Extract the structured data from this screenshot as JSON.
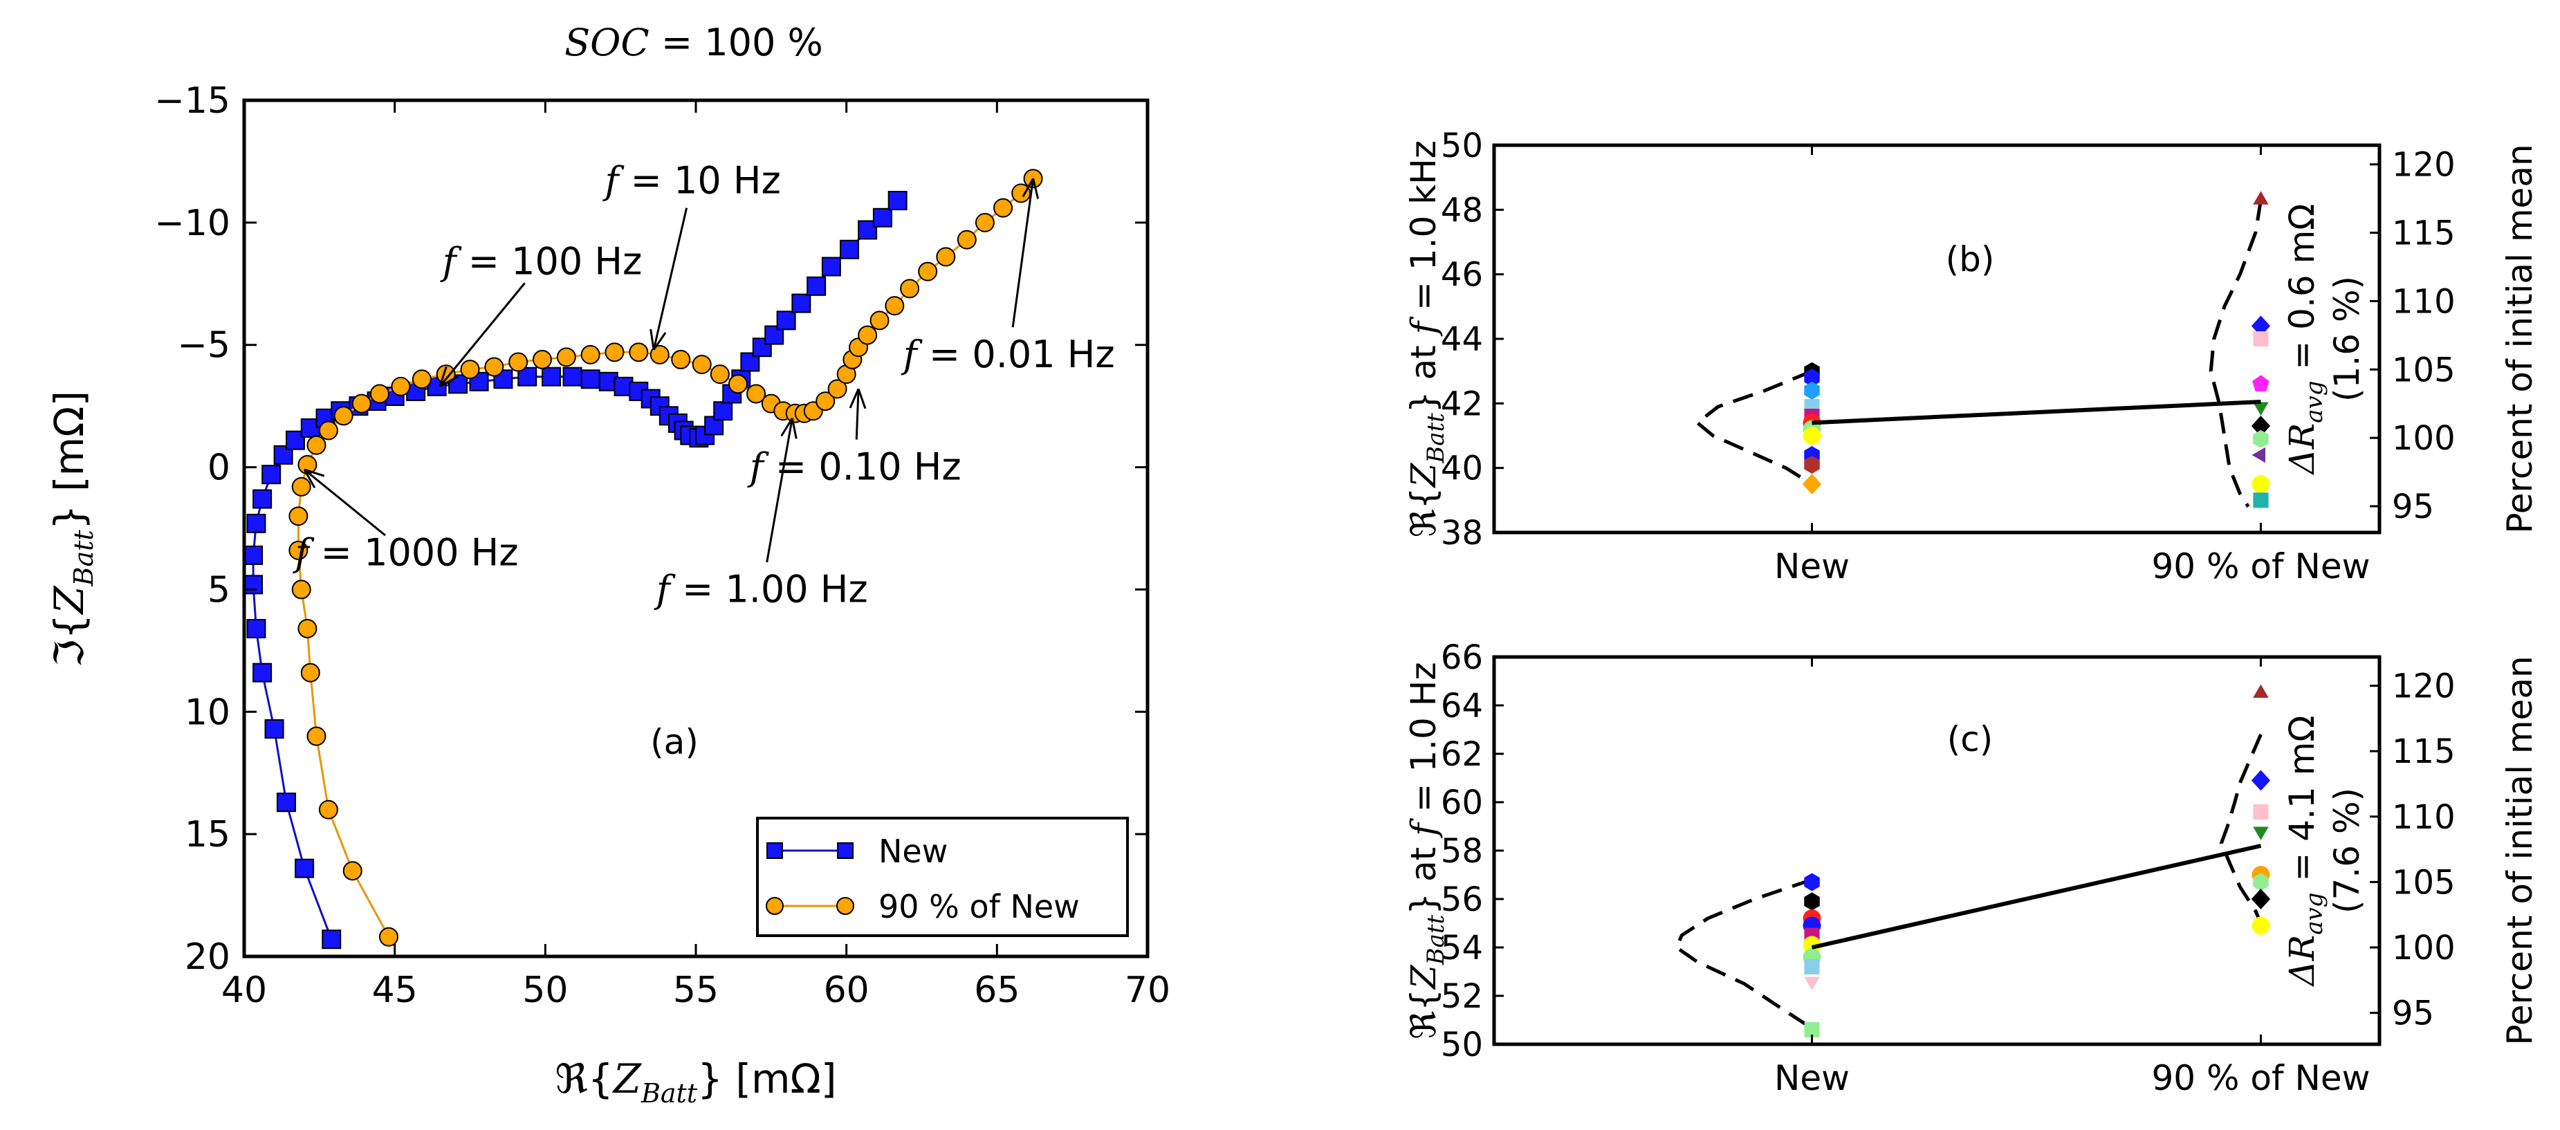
{
  "chart_data": [
    {
      "id": "a",
      "type": "scatter",
      "title": "SOC = 100 %",
      "title_parts": {
        "var": "SOC",
        "rest": " = 100 %"
      },
      "panel_label": "(a)",
      "xlabel": "ℜ{Z_Batt} [mΩ]",
      "xlabel_parts": {
        "op": "ℜ",
        "var": "Z",
        "sub": "Batt",
        "unit": " [mΩ]"
      },
      "ylabel": "ℑ{Z_Batt} [mΩ]",
      "ylabel_parts": {
        "op": "ℑ",
        "var": "Z",
        "sub": "Batt",
        "unit": " [mΩ]"
      },
      "xlim": [
        40,
        70
      ],
      "ylim": [
        20,
        -15
      ],
      "xticks": [
        40,
        45,
        50,
        55,
        60,
        65,
        70
      ],
      "xtick_labels": [
        "40",
        "45",
        "50",
        "55",
        "60",
        "65",
        "70"
      ],
      "yticks": [
        -15,
        -10,
        -5,
        0,
        5,
        10,
        15,
        20
      ],
      "ytick_labels": [
        "−15",
        "−10",
        "−5",
        "0",
        "5",
        "10",
        "15",
        "20"
      ],
      "grid": false,
      "legend_position": "bottom-right",
      "series": [
        {
          "name": "New",
          "color": "#1414ff",
          "line_color": "#1010c8",
          "marker": "square",
          "x": [
            42.9,
            42.0,
            41.4,
            41.0,
            40.6,
            40.4,
            40.3,
            40.3,
            40.4,
            40.6,
            40.9,
            41.3,
            41.7,
            42.2,
            42.7,
            43.2,
            43.8,
            44.4,
            45.0,
            45.7,
            46.4,
            47.1,
            47.8,
            48.6,
            49.4,
            50.2,
            50.9,
            51.5,
            52.1,
            52.6,
            53.1,
            53.5,
            53.8,
            54.1,
            54.4,
            54.6,
            54.8,
            55.1,
            55.3,
            55.6,
            55.9,
            56.2,
            56.5,
            56.8,
            57.2,
            57.6,
            58.0,
            58.5,
            59.0,
            59.5,
            60.1,
            60.7,
            61.2,
            61.7
          ],
          "y": [
            19.3,
            16.4,
            13.7,
            10.7,
            8.4,
            6.6,
            4.8,
            3.6,
            2.3,
            1.3,
            0.3,
            -0.5,
            -1.1,
            -1.6,
            -2.0,
            -2.3,
            -2.5,
            -2.7,
            -2.9,
            -3.1,
            -3.3,
            -3.4,
            -3.5,
            -3.6,
            -3.7,
            -3.7,
            -3.7,
            -3.6,
            -3.5,
            -3.3,
            -3.1,
            -2.8,
            -2.5,
            -2.1,
            -1.8,
            -1.5,
            -1.3,
            -1.2,
            -1.3,
            -1.7,
            -2.3,
            -3.0,
            -3.6,
            -4.3,
            -4.9,
            -5.4,
            -6.0,
            -6.7,
            -7.4,
            -8.2,
            -8.9,
            -9.7,
            -10.2,
            -10.9
          ]
        },
        {
          "name": "90 % of New",
          "color": "#ffa500",
          "line_color": "#e8960a",
          "marker": "circle",
          "x": [
            44.8,
            43.6,
            42.8,
            42.4,
            42.2,
            42.1,
            41.9,
            41.8,
            41.8,
            41.9,
            42.1,
            42.4,
            42.8,
            43.3,
            43.9,
            44.5,
            45.2,
            45.9,
            46.7,
            47.5,
            48.3,
            49.1,
            49.9,
            50.7,
            51.5,
            52.3,
            53.1,
            53.8,
            54.5,
            55.2,
            55.8,
            56.4,
            57.0,
            57.5,
            57.9,
            58.3,
            58.6,
            58.9,
            59.3,
            59.7,
            60.0,
            60.2,
            60.4,
            60.7,
            61.1,
            61.6,
            62.1,
            62.7,
            63.3,
            64.0,
            64.6,
            65.2,
            65.8,
            66.2
          ],
          "y": [
            19.2,
            16.5,
            14.0,
            11.0,
            8.4,
            6.6,
            5.0,
            3.4,
            2.0,
            0.8,
            -0.1,
            -0.9,
            -1.5,
            -2.1,
            -2.6,
            -3.0,
            -3.3,
            -3.6,
            -3.8,
            -4.0,
            -4.1,
            -4.3,
            -4.4,
            -4.5,
            -4.6,
            -4.7,
            -4.7,
            -4.6,
            -4.4,
            -4.2,
            -3.8,
            -3.4,
            -3.0,
            -2.6,
            -2.3,
            -2.2,
            -2.2,
            -2.3,
            -2.7,
            -3.2,
            -3.8,
            -4.4,
            -4.9,
            -5.4,
            -6.0,
            -6.6,
            -7.3,
            -8.0,
            -8.6,
            -9.3,
            -10.0,
            -10.6,
            -11.2,
            -11.8
          ]
        }
      ],
      "annotations": [
        {
          "text_var": "f",
          "text_rest": " = 10 Hz",
          "text": "f = 10 Hz",
          "label_at": [
            54.9,
            -11.7
          ],
          "point_to": [
            53.6,
            -4.8
          ]
        },
        {
          "text_var": "f",
          "text_rest": " = 100 Hz",
          "text": "f = 100 Hz",
          "label_at": [
            49.9,
            -8.4
          ],
          "point_to": [
            46.5,
            -3.3
          ]
        },
        {
          "text_var": "f",
          "text_rest": " = 0.01 Hz",
          "text": "f = 0.01 Hz",
          "label_at": [
            65.4,
            -4.6
          ],
          "point_to": [
            66.2,
            -11.8
          ]
        },
        {
          "text_var": "f",
          "text_rest": " = 0.10 Hz",
          "text": "f = 0.10 Hz",
          "label_at": [
            60.3,
            0.0
          ],
          "point_to": [
            60.4,
            -3.2
          ]
        },
        {
          "text_var": "f",
          "text_rest": " = 1000 Hz",
          "text": "f = 1000 Hz",
          "label_at": [
            45.4,
            3.5
          ],
          "point_to": [
            42.0,
            0.1
          ]
        },
        {
          "text_var": "f",
          "text_rest": " = 1.00 Hz",
          "text": "f = 1.00 Hz",
          "label_at": [
            57.2,
            5.0
          ],
          "point_to": [
            58.2,
            -2.0
          ]
        }
      ]
    },
    {
      "id": "b",
      "type": "scatter",
      "panel_label": "(b)",
      "categories": [
        "New",
        "90 % of New"
      ],
      "ylabel": "ℜ{Z_Batt} at f = 1.0 kHz",
      "ylabel_parts": {
        "op": "ℜ",
        "var": "Z",
        "sub": "Batt",
        "mid": " at ",
        "fvar": "f",
        "rest": " = 1.0 kHz"
      },
      "y2label": "Percent of initial mean",
      "ylim": [
        38,
        50
      ],
      "yticks": [
        38,
        40,
        42,
        44,
        46,
        48,
        50
      ],
      "ytick_labels": [
        "38",
        "40",
        "42",
        "44",
        "46",
        "48",
        "50"
      ],
      "y2lim": [
        93.08,
        121.4
      ],
      "y2ticks": [
        95,
        100,
        105,
        110,
        115,
        120
      ],
      "y2tick_labels": [
        "95",
        "100",
        "105",
        "110",
        "115",
        "120"
      ],
      "delta": {
        "var": "ΔR",
        "sub": "avg",
        "value": " = 0.6 mΩ",
        "pct": "(1.6 %)",
        "text": "ΔR_avg = 0.6 mΩ (1.6 %)"
      },
      "mean_line": [
        41.4,
        42.05
      ],
      "grid": false,
      "points": [
        {
          "cat": 0,
          "y": 43.0,
          "color": "#000000",
          "marker": "hexagon"
        },
        {
          "cat": 0,
          "y": 42.8,
          "color": "#1414ff",
          "marker": "hexagon"
        },
        {
          "cat": 0,
          "y": 42.4,
          "color": "#1ea0ff",
          "marker": "hexagon"
        },
        {
          "cat": 0,
          "y": 41.9,
          "color": "#87ceeb",
          "marker": "square"
        },
        {
          "cat": 0,
          "y": 41.6,
          "color": "#c71585",
          "marker": "square"
        },
        {
          "cat": 0,
          "y": 41.4,
          "color": "#ff2020",
          "marker": "circle"
        },
        {
          "cat": 0,
          "y": 41.2,
          "color": "#90ee90",
          "marker": "circle"
        },
        {
          "cat": 0,
          "y": 41.0,
          "color": "#ffff00",
          "marker": "circle"
        },
        {
          "cat": 0,
          "y": 40.4,
          "color": "#1414ff",
          "marker": "hexagon"
        },
        {
          "cat": 0,
          "y": 40.1,
          "color": "#b03030",
          "marker": "hexagon"
        },
        {
          "cat": 0,
          "y": 39.5,
          "color": "#ffa500",
          "marker": "diamond"
        },
        {
          "cat": 1,
          "y": 48.3,
          "color": "#a52a2a",
          "marker": "triangle-up"
        },
        {
          "cat": 1,
          "y": 44.4,
          "color": "#1414ff",
          "marker": "diamond"
        },
        {
          "cat": 1,
          "y": 44.0,
          "color": "#ffc0cb",
          "marker": "square"
        },
        {
          "cat": 1,
          "y": 42.6,
          "color": "#ff20ff",
          "marker": "pentagon"
        },
        {
          "cat": 1,
          "y": 41.9,
          "color": "#228b22",
          "marker": "triangle-down"
        },
        {
          "cat": 1,
          "y": 41.3,
          "color": "#000000",
          "marker": "diamond"
        },
        {
          "cat": 1,
          "y": 40.9,
          "color": "#90ee90",
          "marker": "hexagon"
        },
        {
          "cat": 1,
          "y": 40.4,
          "color": "#7030a0",
          "marker": "triangle-left"
        },
        {
          "cat": 1,
          "y": 39.5,
          "color": "#ffff00",
          "marker": "circle"
        },
        {
          "cat": 1,
          "y": 39.0,
          "color": "#20b2aa",
          "marker": "square"
        }
      ],
      "distributions": [
        {
          "cat": 0,
          "side": "left",
          "pts": [
            [
              43.0,
              0.0
            ],
            [
              42.4,
              0.45
            ],
            [
              41.9,
              0.9
            ],
            [
              41.4,
              1.1
            ],
            [
              41.0,
              0.95
            ],
            [
              40.5,
              0.6
            ],
            [
              40.0,
              0.25
            ],
            [
              39.5,
              0.0
            ]
          ]
        },
        {
          "cat": 1,
          "side": "left",
          "pts": [
            [
              48.3,
              0.0
            ],
            [
              47.3,
              0.05
            ],
            [
              46.0,
              0.2
            ],
            [
              45.0,
              0.35
            ],
            [
              44.0,
              0.45
            ],
            [
              43.0,
              0.48
            ],
            [
              42.0,
              0.4
            ],
            [
              41.0,
              0.35
            ],
            [
              40.0,
              0.3
            ],
            [
              39.2,
              0.2
            ],
            [
              38.8,
              0.12
            ]
          ]
        }
      ]
    },
    {
      "id": "c",
      "type": "scatter",
      "panel_label": "(c)",
      "categories": [
        "New",
        "90 % of New"
      ],
      "ylabel": "ℜ{Z_Batt} at f = 1.0 Hz",
      "ylabel_parts": {
        "op": "ℜ",
        "var": "Z",
        "sub": "Batt",
        "mid": " at ",
        "fvar": "f",
        "rest": " = 1.0 Hz"
      },
      "y2label": "Percent of initial mean",
      "ylim": [
        50,
        66
      ],
      "yticks": [
        50,
        52,
        54,
        56,
        58,
        60,
        62,
        64,
        66
      ],
      "ytick_labels": [
        "50",
        "52",
        "54",
        "56",
        "58",
        "60",
        "62",
        "64",
        "66"
      ],
      "y2lim": [
        92.6,
        122.2
      ],
      "y2ticks": [
        95,
        100,
        105,
        110,
        115,
        120
      ],
      "y2tick_labels": [
        "95",
        "100",
        "105",
        "110",
        "115",
        "120"
      ],
      "delta": {
        "var": "ΔR",
        "sub": "avg",
        "value": " = 4.1 mΩ",
        "pct": "(7.6 %)",
        "text": "ΔR_avg = 4.1 mΩ (7.6 %)"
      },
      "mean_line": [
        54.0,
        58.2
      ],
      "grid": false,
      "points": [
        {
          "cat": 0,
          "y": 56.7,
          "color": "#1414ff",
          "marker": "hexagon"
        },
        {
          "cat": 0,
          "y": 55.9,
          "color": "#000000",
          "marker": "hexagon"
        },
        {
          "cat": 0,
          "y": 55.2,
          "color": "#ff2020",
          "marker": "circle"
        },
        {
          "cat": 0,
          "y": 54.9,
          "color": "#1414ff",
          "marker": "circle"
        },
        {
          "cat": 0,
          "y": 54.5,
          "color": "#c71585",
          "marker": "square"
        },
        {
          "cat": 0,
          "y": 54.1,
          "color": "#ffff00",
          "marker": "circle"
        },
        {
          "cat": 0,
          "y": 53.6,
          "color": "#90ee90",
          "marker": "circle"
        },
        {
          "cat": 0,
          "y": 53.2,
          "color": "#87ceeb",
          "marker": "square"
        },
        {
          "cat": 0,
          "y": 52.6,
          "color": "#ffc0cb",
          "marker": "triangle-down"
        },
        {
          "cat": 0,
          "y": 50.6,
          "color": "#90ee90",
          "marker": "square"
        },
        {
          "cat": 1,
          "y": 64.5,
          "color": "#a52a2a",
          "marker": "triangle-up"
        },
        {
          "cat": 1,
          "y": 60.9,
          "color": "#1414ff",
          "marker": "diamond"
        },
        {
          "cat": 1,
          "y": 59.6,
          "color": "#ffc0cb",
          "marker": "square"
        },
        {
          "cat": 1,
          "y": 58.8,
          "color": "#228b22",
          "marker": "triangle-down"
        },
        {
          "cat": 1,
          "y": 57.0,
          "color": "#ffa500",
          "marker": "circle"
        },
        {
          "cat": 1,
          "y": 56.7,
          "color": "#90ee90",
          "marker": "hexagon"
        },
        {
          "cat": 1,
          "y": 56.0,
          "color": "#000000",
          "marker": "diamond"
        },
        {
          "cat": 1,
          "y": 54.9,
          "color": "#ffff00",
          "marker": "circle"
        }
      ],
      "distributions": [
        {
          "cat": 0,
          "side": "left",
          "pts": [
            [
              56.8,
              0.0
            ],
            [
              56.0,
              0.55
            ],
            [
              55.2,
              1.0
            ],
            [
              54.5,
              1.25
            ],
            [
              54.0,
              1.3
            ],
            [
              53.4,
              1.1
            ],
            [
              52.5,
              0.65
            ],
            [
              51.5,
              0.3
            ],
            [
              50.8,
              0.05
            ],
            [
              50.4,
              0.0
            ]
          ]
        },
        {
          "cat": 1,
          "side": "left",
          "pts": [
            [
              62.8,
              0.0
            ],
            [
              61.8,
              0.1
            ],
            [
              60.8,
              0.2
            ],
            [
              60.0,
              0.25
            ],
            [
              59.0,
              0.32
            ],
            [
              58.3,
              0.38
            ],
            [
              57.5,
              0.3
            ],
            [
              56.5,
              0.2
            ],
            [
              55.5,
              0.05
            ],
            [
              55.0,
              0.0
            ]
          ]
        }
      ]
    }
  ]
}
